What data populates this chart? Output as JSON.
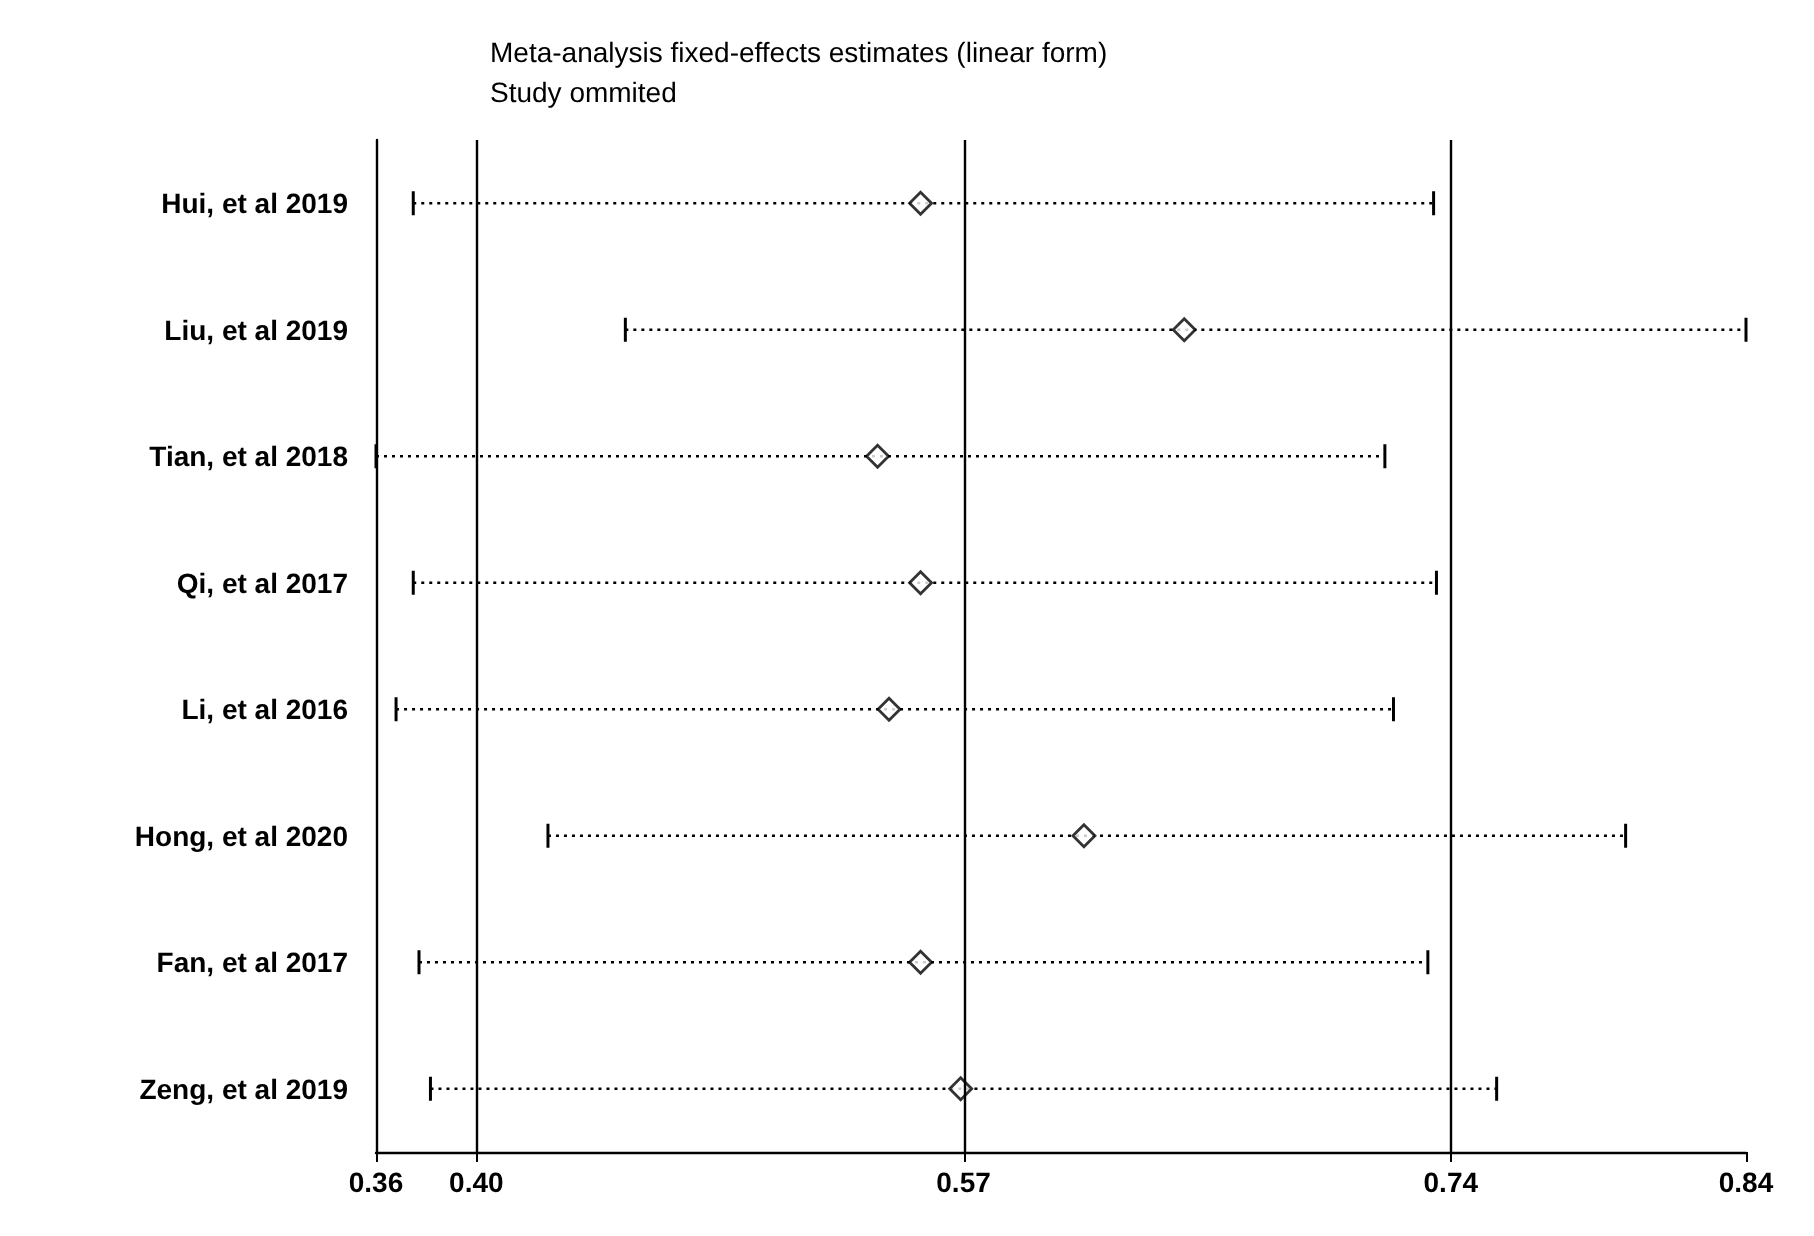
{
  "chart_data": {
    "type": "scatter",
    "title": "Meta-analysis fixed-effects estimates (linear form)",
    "subtitle": "Study ommited",
    "categories": [
      "Hui, et al 2019",
      "Liu, et al 2019",
      "Tian, et al 2018",
      "Qi, et al 2017",
      "Li, et al 2016",
      "Hong, et al 2020",
      "Fan, et al 2017",
      "Zeng, et al 2019"
    ],
    "orientation": "horizontal",
    "values": [
      0.555,
      0.647,
      0.54,
      0.555,
      0.544,
      0.612,
      0.555,
      0.569
    ],
    "errors": [
      [
        0.378,
        0.734
      ],
      [
        0.452,
        0.843
      ],
      [
        0.365,
        0.717
      ],
      [
        0.378,
        0.735
      ],
      [
        0.372,
        0.72
      ],
      [
        0.425,
        0.801
      ],
      [
        0.38,
        0.732
      ],
      [
        0.384,
        0.756
      ]
    ],
    "color": "#000000",
    "marker": "diamond",
    "line_style": "dotted",
    "xlim": [
      0.365,
      0.843
    ],
    "xticks": [
      {
        "value": 0.365,
        "label": "0.36"
      },
      {
        "value": 0.4,
        "label": "0.40"
      },
      0.57,
      0.74,
      {
        "value": 0.843,
        "label": "0.84"
      }
    ],
    "ref_lines": [
      {
        "axis": "x",
        "value": 0.4
      },
      {
        "axis": "x",
        "value": 0.57
      },
      {
        "axis": "x",
        "value": 0.74
      }
    ],
    "grid": false
  }
}
